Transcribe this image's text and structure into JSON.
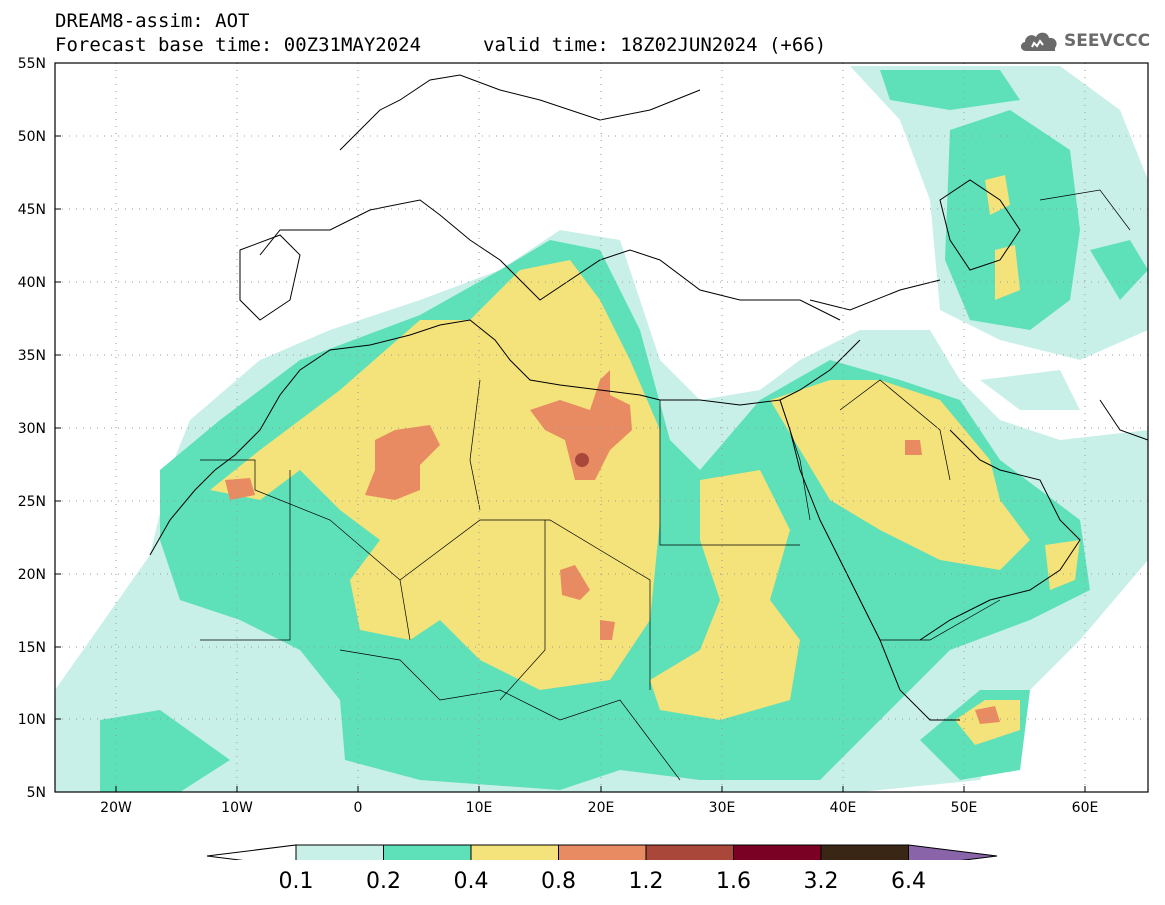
{
  "header": {
    "title": "DREAM8-assim: AOT",
    "base_time": "Forecast base time: 00Z31MAY2024",
    "valid_time": "valid time: 18Z02JUN2024 (+66)"
  },
  "logo": {
    "text": "SEEVCCC",
    "icon": "cloud-icon"
  },
  "map": {
    "lat_labels": [
      "55N",
      "50N",
      "45N",
      "40N",
      "35N",
      "30N",
      "25N",
      "20N",
      "15N",
      "10N",
      "5N"
    ],
    "lon_labels": [
      "20W",
      "10W",
      "0",
      "10E",
      "20E",
      "30E",
      "40E",
      "50E",
      "60E"
    ]
  },
  "colorbar": {
    "labels": [
      "0.1",
      "0.2",
      "0.4",
      "0.8",
      "1.2",
      "1.6",
      "3.2",
      "6.4"
    ],
    "colors": [
      "#c8f0e8",
      "#5ee0b8",
      "#f4e27a",
      "#e88a62",
      "#a8473a",
      "#7a0024",
      "#3a2614",
      "#8a64a8"
    ]
  },
  "colors": {
    "level1": "#c8f0e8",
    "level2": "#5ee0b8",
    "level3": "#f4e27a",
    "level4": "#e88a62",
    "level5": "#a8473a"
  }
}
